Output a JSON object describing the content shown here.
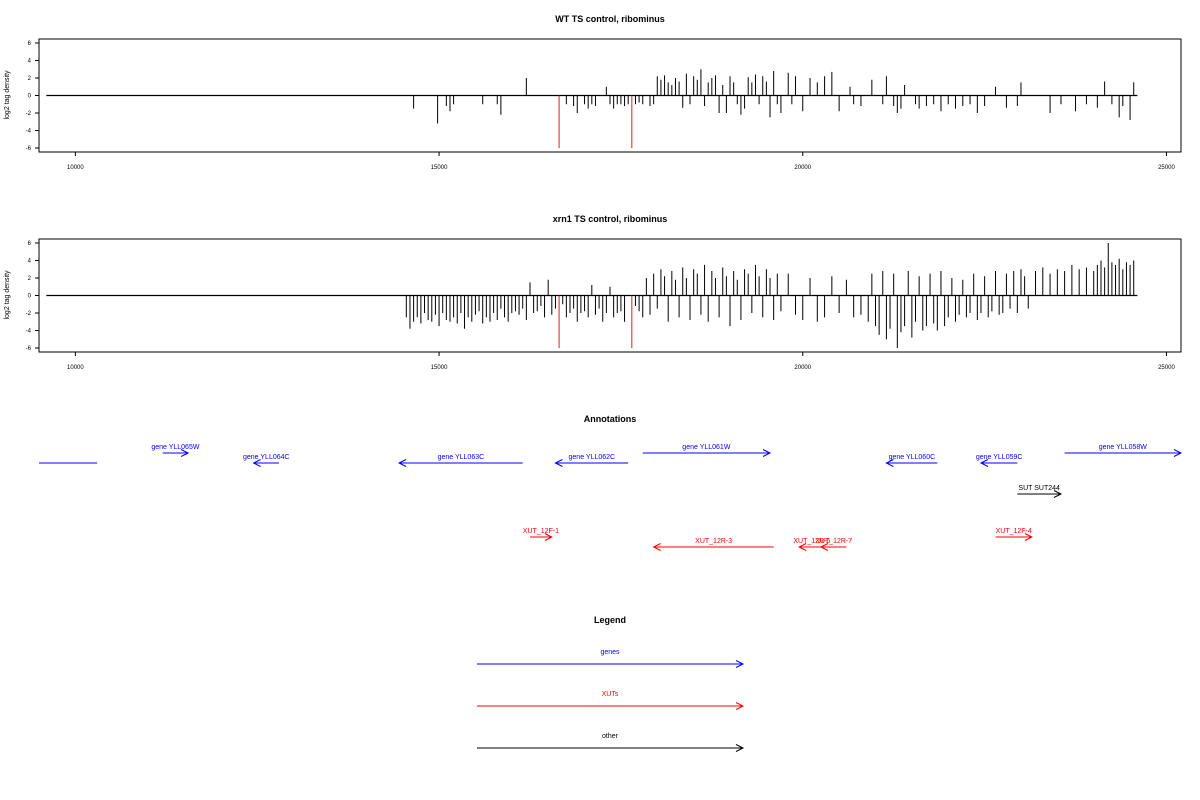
{
  "chart_data": [
    {
      "type": "bar",
      "title": "WT TS control, ribominus",
      "xlabel": "",
      "ylabel": "log2 tag density",
      "xlim": [
        9500,
        25200
      ],
      "ylim": [
        -6,
        6
      ],
      "xticks": [
        "10000",
        "15000",
        "20000",
        "25000"
      ],
      "yticks": [
        "6",
        "4",
        "2",
        "0",
        "-2",
        "-4",
        "-6"
      ],
      "baseline": {
        "x": [
          9600,
          24600
        ],
        "y": 0
      },
      "series": [
        {
          "color": "#000000",
          "x": [
            14650,
            14980,
            15100,
            15150,
            15200,
            15600,
            15800,
            15850,
            16200,
            16750,
            16850,
            16900,
            17000,
            17050,
            17100,
            17150,
            17300,
            17350,
            17400,
            17450,
            17500,
            17550,
            17600,
            17700,
            17750,
            17800,
            17900,
            17950,
            18000,
            18050,
            18100,
            18150,
            18200,
            18250,
            18300,
            18350,
            18400,
            18450,
            18500,
            18550,
            18600,
            18650,
            18700,
            18750,
            18800,
            18850,
            18900,
            18950,
            19000,
            19050,
            19100,
            19150,
            19200,
            19250,
            19300,
            19350,
            19400,
            19450,
            19500,
            19550,
            19600,
            19650,
            19700,
            19800,
            19850,
            19900,
            20000,
            20100,
            20200,
            20300,
            20400,
            20500,
            20650,
            20700,
            20800,
            20950,
            21100,
            21150,
            21250,
            21300,
            21350,
            21400,
            21550,
            21600,
            21700,
            21800,
            21900,
            22000,
            22100,
            22200,
            22300,
            22400,
            22500,
            22650,
            22800,
            22950,
            23000,
            23400,
            23550,
            23750,
            23900,
            24050,
            24150,
            24250,
            24350,
            24400,
            24500,
            24550
          ],
          "values": [
            -1.5,
            -3.2,
            -1.2,
            -1.8,
            -1.0,
            -1.0,
            -1.0,
            -2.2,
            2.0,
            -1.0,
            -1.2,
            -2.0,
            -1.0,
            -1.5,
            -1.0,
            -1.2,
            1.0,
            -1.0,
            -1.5,
            -1.0,
            -1.0,
            -1.2,
            -1.0,
            -1.0,
            -0.8,
            -1.0,
            -1.2,
            -1.0,
            2.2,
            1.8,
            2.3,
            1.5,
            1.2,
            2.0,
            1.6,
            -1.4,
            2.5,
            -1.0,
            2.2,
            1.8,
            3.0,
            -1.2,
            1.5,
            2.0,
            2.3,
            -2.0,
            1.2,
            -2.0,
            2.2,
            1.5,
            -1.0,
            -2.2,
            -1.5,
            2.1,
            1.5,
            2.4,
            -1.0,
            2.2,
            1.6,
            -2.5,
            2.8,
            -1.0,
            -2.0,
            2.6,
            -1.0,
            2.2,
            -1.8,
            2.0,
            1.5,
            2.2,
            2.7,
            -1.8,
            1.0,
            -1.0,
            -1.2,
            1.8,
            -1.0,
            2.2,
            -1.2,
            -2.0,
            -1.5,
            1.2,
            -1.0,
            -1.5,
            -1.2,
            -1.0,
            -1.8,
            -1.0,
            -1.5,
            -1.2,
            -1.0,
            -2.0,
            -1.2,
            1.0,
            -1.4,
            -1.2,
            1.5,
            -2.0,
            -1.0,
            -1.8,
            -1.0,
            -1.4,
            1.6,
            -1.0,
            -2.5,
            -1.2,
            -2.8,
            1.5
          ]
        },
        {
          "color": "#e31a1c",
          "x": [
            16650,
            17650
          ],
          "values": [
            -6,
            -6
          ]
        }
      ]
    },
    {
      "type": "bar",
      "title": "xrn1 TS control, ribominus",
      "xlabel": "",
      "ylabel": "log2 tag density",
      "xlim": [
        9500,
        25200
      ],
      "ylim": [
        -6,
        6
      ],
      "xticks": [
        "10000",
        "15000",
        "20000",
        "25000"
      ],
      "yticks": [
        "6",
        "4",
        "2",
        "0",
        "-2",
        "-4",
        "-6"
      ],
      "baseline": {
        "x": [
          9600,
          24600
        ],
        "y": 0
      },
      "series": [
        {
          "color": "#000000",
          "x": [
            14550,
            14600,
            14650,
            14700,
            14750,
            14800,
            14850,
            14900,
            14950,
            15000,
            15050,
            15100,
            15150,
            15200,
            15250,
            15300,
            15350,
            15400,
            15450,
            15500,
            15550,
            15600,
            15650,
            15700,
            15750,
            15800,
            15850,
            15900,
            15950,
            16000,
            16050,
            16100,
            16150,
            16200,
            16250,
            16300,
            16350,
            16400,
            16450,
            16500,
            16550,
            16600,
            16700,
            16750,
            16800,
            16850,
            16900,
            16950,
            17000,
            17050,
            17100,
            17150,
            17200,
            17250,
            17300,
            17350,
            17400,
            17450,
            17500,
            17550,
            17700,
            17750,
            17800,
            17850,
            17900,
            17950,
            18000,
            18050,
            18100,
            18150,
            18200,
            18250,
            18300,
            18350,
            18400,
            18450,
            18500,
            18550,
            18600,
            18650,
            18700,
            18750,
            18800,
            18850,
            18900,
            18950,
            19000,
            19050,
            19100,
            19150,
            19200,
            19250,
            19300,
            19350,
            19400,
            19450,
            19500,
            19550,
            19600,
            19650,
            19700,
            19800,
            19900,
            20000,
            20100,
            20200,
            20300,
            20400,
            20500,
            20600,
            20700,
            20800,
            20900,
            20950,
            21000,
            21050,
            21100,
            21150,
            21200,
            21250,
            21300,
            21350,
            21400,
            21450,
            21500,
            21550,
            21600,
            21650,
            21700,
            21750,
            21800,
            21850,
            21900,
            21950,
            22000,
            22050,
            22100,
            22150,
            22200,
            22250,
            22300,
            22350,
            22400,
            22450,
            22500,
            22550,
            22600,
            22650,
            22700,
            22750,
            22800,
            22850,
            22900,
            22950,
            23000,
            23050,
            23100,
            23200,
            23300,
            23400,
            23500,
            23600,
            23700,
            23800,
            23900,
            24000,
            24050,
            24100,
            24150,
            24200,
            24250,
            24300,
            24350,
            24400,
            24450,
            24500,
            24550
          ],
          "values": [
            -2.5,
            -3.8,
            -3.0,
            -2.5,
            -3.2,
            -2.0,
            -2.8,
            -3.0,
            -2.2,
            -3.5,
            -2.0,
            -2.8,
            -3.0,
            -2.5,
            -3.2,
            -2.0,
            -3.8,
            -2.5,
            -3.0,
            -2.2,
            -1.8,
            -3.2,
            -2.5,
            -3.0,
            -2.0,
            -2.8,
            -1.5,
            -2.5,
            -3.0,
            -2.0,
            -1.8,
            -2.2,
            -1.5,
            -2.8,
            1.5,
            -2.0,
            -1.8,
            -1.2,
            -2.5,
            1.8,
            -2.2,
            -1.5,
            -1.0,
            -2.5,
            -2.0,
            -1.5,
            -3.0,
            -2.0,
            -1.8,
            -2.5,
            1.2,
            -2.2,
            -1.5,
            -3.0,
            -2.0,
            1.0,
            -2.5,
            -2.0,
            -1.8,
            -3.0,
            -1.2,
            -1.8,
            -2.5,
            2.0,
            -2.2,
            2.5,
            -1.5,
            3.0,
            2.2,
            -3.0,
            2.8,
            1.8,
            -2.5,
            3.2,
            2.0,
            -2.8,
            3.0,
            2.5,
            -2.2,
            3.5,
            -3.0,
            2.8,
            2.0,
            -2.5,
            3.2,
            2.2,
            -3.5,
            2.8,
            1.8,
            -2.8,
            3.0,
            2.5,
            -2.0,
            3.5,
            2.2,
            -2.5,
            3.0,
            2.0,
            -2.8,
            2.5,
            -1.8,
            2.5,
            -2.2,
            -2.8,
            2.0,
            -3.0,
            -2.5,
            2.2,
            -2.0,
            1.8,
            -2.5,
            -2.2,
            -3.0,
            2.5,
            -3.5,
            -4.5,
            2.8,
            -5.0,
            -3.8,
            2.5,
            -6.0,
            -4.2,
            -3.5,
            2.8,
            -4.8,
            -3.0,
            2.2,
            -4.0,
            -3.5,
            2.5,
            -3.2,
            -4.0,
            2.8,
            -3.5,
            -2.5,
            2.0,
            -3.0,
            -2.2,
            1.8,
            -2.5,
            -2.0,
            2.5,
            -2.8,
            -2.0,
            2.2,
            -2.5,
            -1.8,
            2.8,
            -2.2,
            -2.0,
            2.5,
            -1.5,
            2.8,
            -2.0,
            3.0,
            2.2,
            -1.5,
            2.8,
            3.2,
            2.5,
            3.0,
            2.8,
            3.5,
            3.0,
            3.2,
            2.8,
            3.5,
            4.0,
            3.2,
            6.0,
            3.8,
            3.5,
            4.2,
            3.0,
            3.8,
            3.5,
            4.0
          ]
        },
        {
          "color": "#e31a1c",
          "x": [
            16650,
            17650
          ],
          "values": [
            -6,
            -6
          ]
        }
      ]
    }
  ],
  "annotations": {
    "title": "Annotations",
    "genes": [
      {
        "label": "",
        "start": 9500,
        "end": 10300,
        "dir": "none",
        "row": 1
      },
      {
        "label": "gene YLL065W",
        "start": 11200,
        "end": 11550,
        "dir": "+",
        "row": 0
      },
      {
        "label": "gene YLL064C",
        "start": 12450,
        "end": 12800,
        "dir": "-",
        "row": 1
      },
      {
        "label": "gene YLL063C",
        "start": 14450,
        "end": 16150,
        "dir": "-",
        "row": 1
      },
      {
        "label": "gene YLL062C",
        "start": 16600,
        "end": 17600,
        "dir": "-",
        "row": 1
      },
      {
        "label": "gene YLL061W",
        "start": 17800,
        "end": 19550,
        "dir": "+",
        "row": 0
      },
      {
        "label": "gene YLL060C",
        "start": 21150,
        "end": 21850,
        "dir": "-",
        "row": 1
      },
      {
        "label": "gene YLL059C",
        "start": 22450,
        "end": 22950,
        "dir": "-",
        "row": 1
      },
      {
        "label": "gene YLL058W",
        "start": 23600,
        "end": 25200,
        "dir": "+",
        "row": 0
      }
    ],
    "xuts": [
      {
        "label": "XUT_12F-1",
        "start": 16250,
        "end": 16550,
        "dir": "+",
        "row": 0
      },
      {
        "label": "XUT_12R-3",
        "start": 17950,
        "end": 19600,
        "dir": "-",
        "row": 1
      },
      {
        "label": "XUT_12R-6",
        "start": 19950,
        "end": 20300,
        "dir": "-",
        "row": 1
      },
      {
        "label": "XUT_12R-7",
        "start": 20250,
        "end": 20600,
        "dir": "-",
        "row": 1
      },
      {
        "label": "XUT_12F-4",
        "start": 22650,
        "end": 23150,
        "dir": "+",
        "row": 0
      }
    ],
    "other": [
      {
        "label": "SUT SUT244",
        "start": 22950,
        "end": 23550,
        "dir": "+",
        "row": 0
      }
    ]
  },
  "legend": {
    "title": "Legend",
    "items": [
      {
        "label": "genes",
        "color": "#0000ff"
      },
      {
        "label": "XUTs",
        "color": "#ff0000"
      },
      {
        "label": "other",
        "color": "#000000"
      }
    ]
  }
}
